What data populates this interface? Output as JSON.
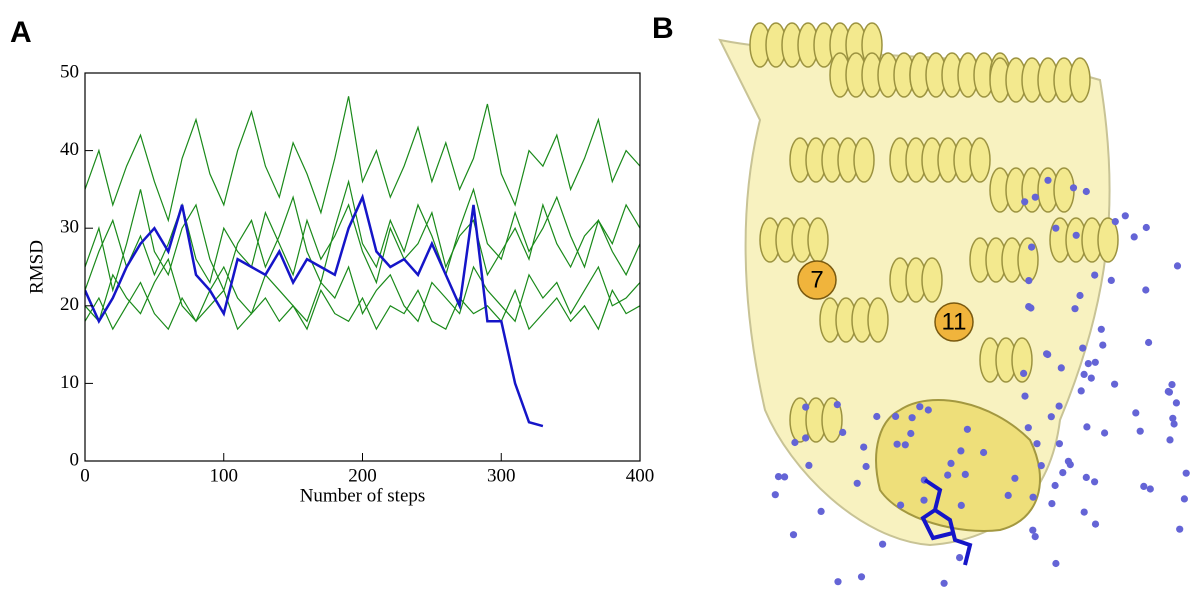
{
  "panel_labels": [
    "A",
    "B"
  ],
  "structure_labels": [
    "7",
    "11"
  ],
  "chart_data": {
    "type": "line",
    "x_label": "Number of steps",
    "y_label": "RMSD",
    "x": [
      0,
      10,
      20,
      30,
      40,
      50,
      60,
      70,
      80,
      90,
      100,
      110,
      120,
      130,
      140,
      150,
      160,
      170,
      180,
      190,
      200,
      210,
      220,
      230,
      240,
      250,
      260,
      270,
      280,
      290,
      300,
      310,
      320,
      330,
      340,
      350,
      360,
      370,
      380,
      390,
      400
    ],
    "series": [
      {
        "color": "#1a8a1a",
        "values": [
          25,
          30,
          22,
          28,
          35,
          27,
          24,
          30,
          33,
          26,
          22,
          28,
          31,
          25,
          29,
          34,
          27,
          23,
          30,
          36,
          28,
          25,
          31,
          27,
          33,
          29,
          24,
          30,
          35,
          28,
          26,
          32,
          27,
          30,
          34,
          29,
          25,
          31,
          28,
          33,
          30
        ]
      },
      {
        "color": "#1a8a1a",
        "values": [
          20,
          18,
          24,
          21,
          19,
          23,
          26,
          20,
          18,
          22,
          25,
          21,
          19,
          24,
          22,
          20,
          18,
          23,
          21,
          25,
          19,
          22,
          24,
          20,
          18,
          23,
          21,
          19,
          25,
          22,
          20,
          18,
          24,
          21,
          23,
          19,
          22,
          25,
          20,
          21,
          23
        ]
      },
      {
        "color": "#1a8a1a",
        "values": [
          35,
          40,
          33,
          38,
          42,
          36,
          31,
          39,
          44,
          37,
          33,
          40,
          45,
          38,
          34,
          41,
          37,
          32,
          39,
          47,
          36,
          40,
          34,
          38,
          43,
          36,
          41,
          35,
          39,
          46,
          37,
          33,
          40,
          38,
          42,
          35,
          39,
          44,
          36,
          40,
          38
        ]
      },
      {
        "color": "#1a8a1a",
        "values": [
          22,
          27,
          31,
          25,
          29,
          24,
          28,
          33,
          26,
          23,
          30,
          27,
          25,
          32,
          28,
          24,
          31,
          26,
          29,
          33,
          27,
          23,
          30,
          26,
          28,
          32,
          25,
          29,
          31,
          24,
          27,
          30,
          26,
          33,
          28,
          25,
          29,
          31,
          27,
          24,
          28
        ]
      },
      {
        "color": "#1a8a1a",
        "values": [
          18,
          21,
          17,
          20,
          23,
          19,
          17,
          21,
          18,
          20,
          22,
          17,
          19,
          21,
          18,
          20,
          17,
          22,
          19,
          18,
          21,
          17,
          20,
          19,
          22,
          18,
          17,
          21,
          19,
          20,
          18,
          22,
          17,
          19,
          21,
          18,
          20,
          17,
          22,
          19,
          20
        ]
      },
      {
        "color": "#1515c8",
        "values": [
          22,
          18,
          21,
          25,
          28,
          30,
          27,
          33,
          24,
          22,
          19,
          26,
          25,
          24,
          27,
          23,
          26,
          25,
          24,
          30,
          34,
          27,
          25,
          26,
          24,
          28,
          24,
          20,
          33,
          18,
          18,
          10,
          5,
          4.5,
          null,
          null,
          null,
          null,
          null,
          null,
          null
        ]
      }
    ],
    "xlim": [
      0,
      400
    ],
    "ylim": [
      0,
      50
    ],
    "xticks": [
      0,
      100,
      200,
      300,
      400
    ],
    "yticks": [
      0,
      10,
      20,
      30,
      40,
      50
    ]
  }
}
